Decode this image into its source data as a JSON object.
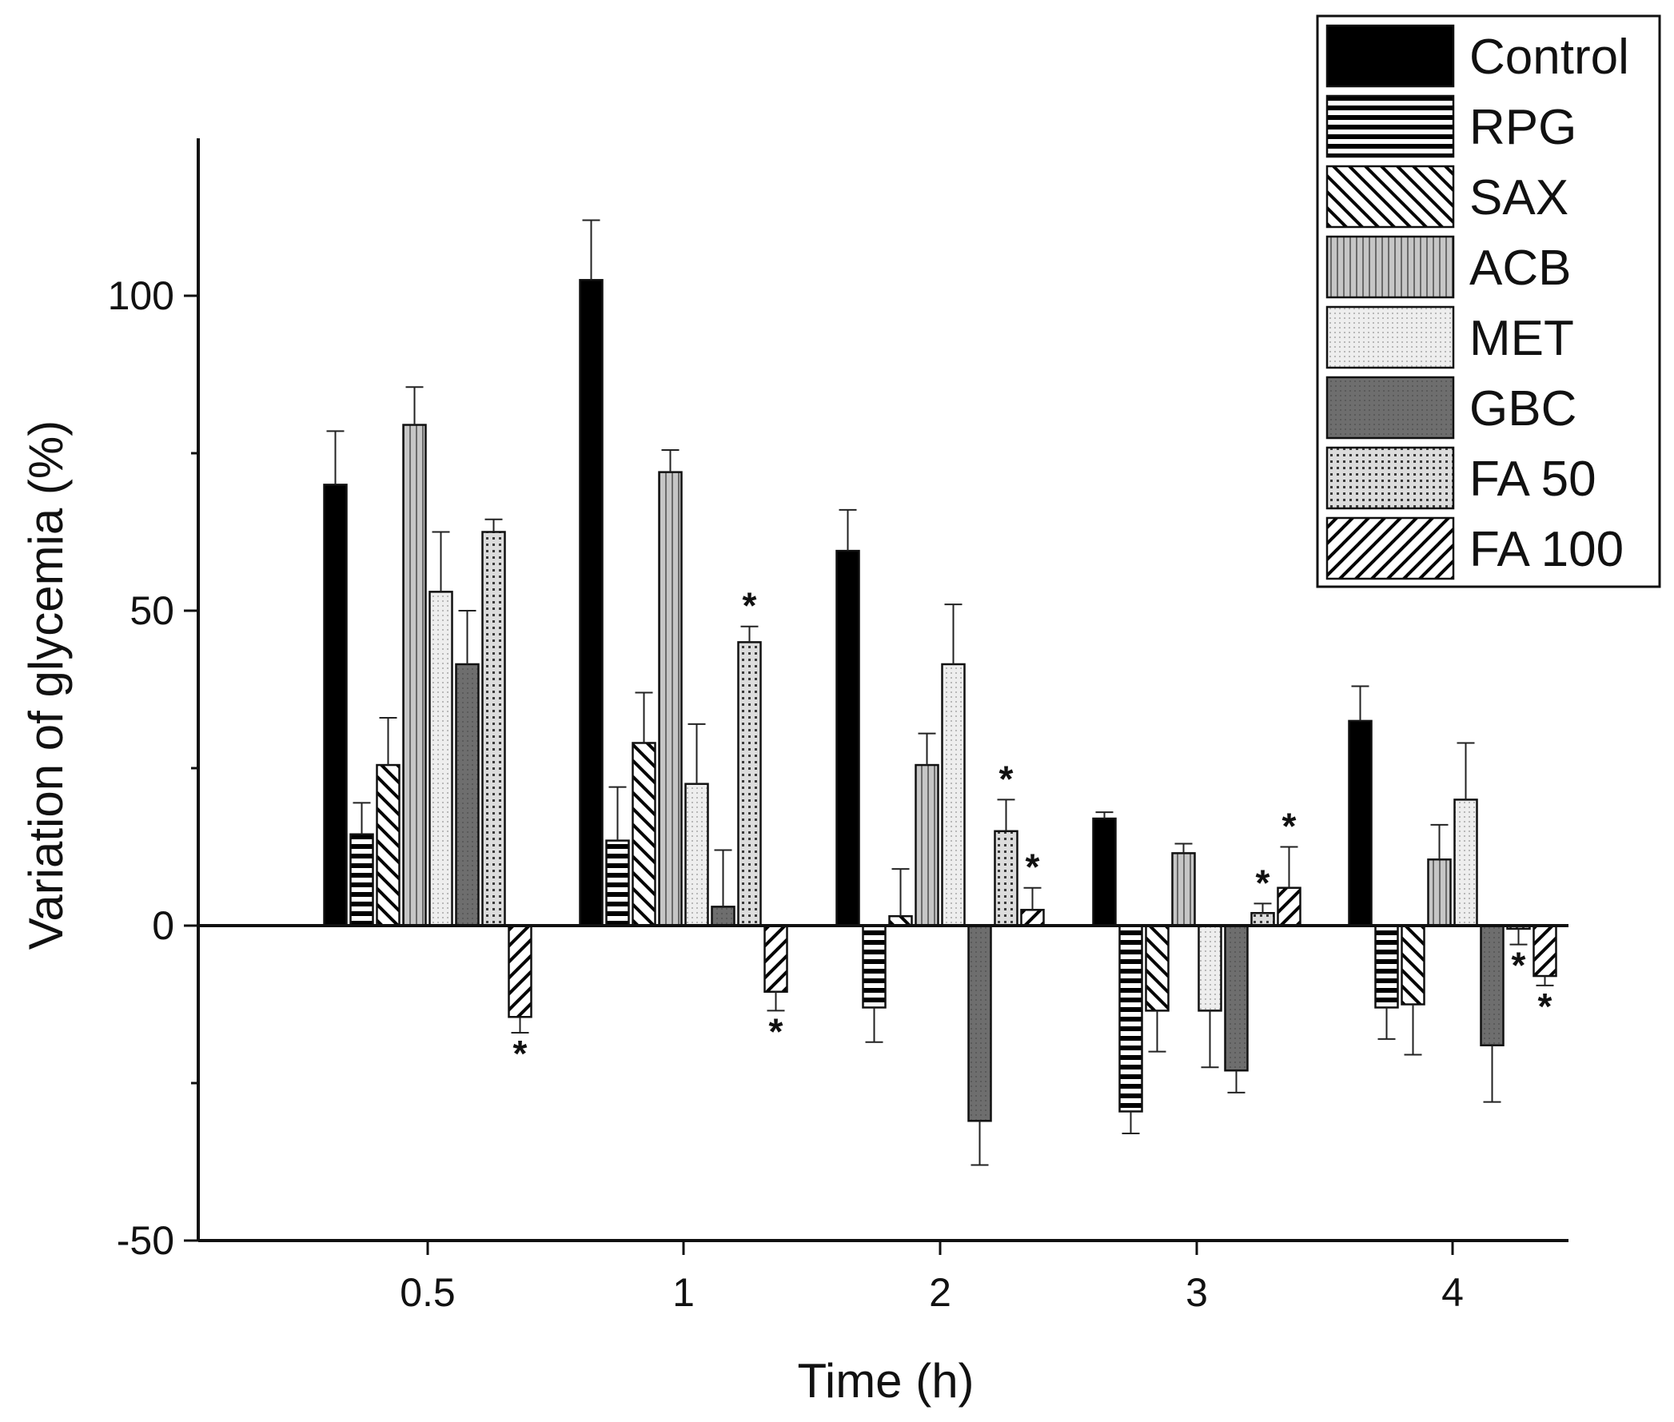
{
  "chart_data": {
    "type": "bar",
    "title": "",
    "xlabel": "Time (h)",
    "ylabel": "Variation of glycemia (%)",
    "ylim": [
      -50,
      125
    ],
    "yticks": [
      -50,
      0,
      50,
      100
    ],
    "ytick_labels": [
      "-50",
      "0",
      "50",
      "100"
    ],
    "categories": [
      "0.5",
      "1",
      "2",
      "3",
      "4"
    ],
    "legend_position": "top-right",
    "grid": false,
    "significance_marker": "*",
    "series": [
      {
        "name": "Control",
        "pattern": "solid-black",
        "values": [
          70,
          102.5,
          59.5,
          17,
          32.5
        ],
        "errors": [
          8.5,
          9.5,
          6.5,
          1,
          5.5
        ],
        "significant": [
          false,
          false,
          false,
          false,
          false
        ]
      },
      {
        "name": "RPG",
        "pattern": "horizontal-lines",
        "values": [
          14.5,
          13.5,
          -13,
          -29.5,
          -13
        ],
        "errors": [
          5,
          8.5,
          5.5,
          3.5,
          5
        ],
        "significant": [
          false,
          false,
          false,
          false,
          false
        ]
      },
      {
        "name": "SAX",
        "pattern": "diagonal-back",
        "values": [
          25.5,
          29,
          1.5,
          -13.5,
          -12.5
        ],
        "errors": [
          7.5,
          8,
          7.5,
          6.5,
          8
        ],
        "significant": [
          false,
          false,
          false,
          false,
          false
        ]
      },
      {
        "name": "ACB",
        "pattern": "vertical-lines-gray",
        "values": [
          79.5,
          72,
          25.5,
          11.5,
          10.5
        ],
        "errors": [
          6,
          3.5,
          5,
          1.5,
          5.5
        ],
        "significant": [
          false,
          false,
          false,
          false,
          false
        ]
      },
      {
        "name": "MET",
        "pattern": "light-dotted",
        "values": [
          53,
          22.5,
          41.5,
          -13.5,
          20
        ],
        "errors": [
          9.5,
          9.5,
          9.5,
          9,
          9
        ],
        "significant": [
          false,
          false,
          false,
          false,
          false
        ]
      },
      {
        "name": "GBC",
        "pattern": "dark-gray",
        "values": [
          41.5,
          3,
          -31,
          -23,
          -19
        ],
        "errors": [
          8.5,
          9,
          7,
          3.5,
          9
        ],
        "significant": [
          false,
          false,
          false,
          false,
          false
        ]
      },
      {
        "name": "FA 50",
        "pattern": "grid-dotted",
        "values": [
          62.5,
          45,
          15,
          2,
          -0.5
        ],
        "errors": [
          2,
          2.5,
          5,
          1.5,
          2.5
        ],
        "significant": [
          false,
          true,
          true,
          true,
          true
        ]
      },
      {
        "name": "FA 100",
        "pattern": "diagonal-forward",
        "values": [
          -14.5,
          -10.5,
          2.5,
          6,
          -8
        ],
        "errors": [
          2.5,
          3,
          3.5,
          6.5,
          1.5
        ],
        "significant": [
          true,
          true,
          true,
          true,
          true
        ]
      }
    ]
  },
  "colors": {
    "axis": "#111111",
    "control": "#000000",
    "acb": "#c4c4c4",
    "met": "#ececec",
    "gbc": "#6f6f6f",
    "fa50": "#d8d8d8"
  }
}
